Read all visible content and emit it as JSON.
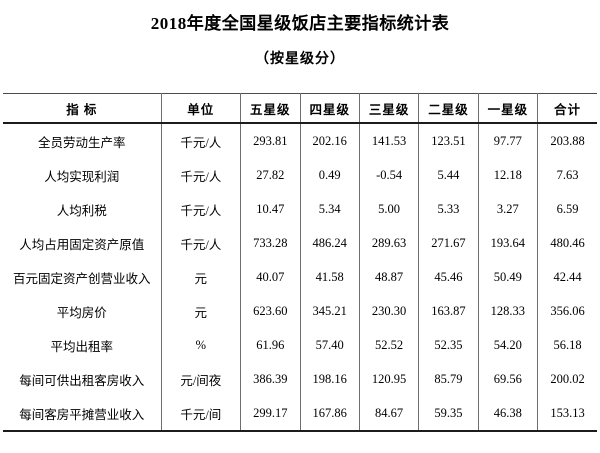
{
  "title": "2018年度全国星级饭店主要指标统计表",
  "subtitle": "（按星级分）",
  "table": {
    "headers": [
      "指 标",
      "单位",
      "五星级",
      "四星级",
      "三星级",
      "二星级",
      "一星级",
      "合计"
    ],
    "rows": [
      {
        "indicator": "全员劳动生产率",
        "unit": "千元/人",
        "values": [
          "293.81",
          "202.16",
          "141.53",
          "123.51",
          "97.77",
          "203.88"
        ]
      },
      {
        "indicator": "人均实现利润",
        "unit": "千元/人",
        "values": [
          "27.82",
          "0.49",
          "-0.54",
          "5.44",
          "12.18",
          "7.63"
        ]
      },
      {
        "indicator": "人均利税",
        "unit": "千元/人",
        "values": [
          "10.47",
          "5.34",
          "5.00",
          "5.33",
          "3.27",
          "6.59"
        ]
      },
      {
        "indicator": "人均占用固定资产原值",
        "unit": "千元/人",
        "values": [
          "733.28",
          "486.24",
          "289.63",
          "271.67",
          "193.64",
          "480.46"
        ]
      },
      {
        "indicator": "百元固定资产创营业收入",
        "unit": "元",
        "values": [
          "40.07",
          "41.58",
          "48.87",
          "45.46",
          "50.49",
          "42.44"
        ]
      },
      {
        "indicator": "平均房价",
        "unit": "元",
        "values": [
          "623.60",
          "345.21",
          "230.30",
          "163.87",
          "128.33",
          "356.06"
        ]
      },
      {
        "indicator": "平均出租率",
        "unit": "%",
        "values": [
          "61.96",
          "57.40",
          "52.52",
          "52.35",
          "54.20",
          "56.18"
        ]
      },
      {
        "indicator": "每间可供出租客房收入",
        "unit": "元/间夜",
        "values": [
          "386.39",
          "198.16",
          "120.95",
          "85.79",
          "69.56",
          "200.02"
        ]
      },
      {
        "indicator": "每间客房平摊营业收入",
        "unit": "千元/间",
        "values": [
          "299.17",
          "167.86",
          "84.67",
          "59.35",
          "46.38",
          "153.13"
        ]
      }
    ],
    "column_widths": [
      "26.6%",
      "13.4%",
      "10%",
      "10%",
      "10%",
      "10%",
      "10%",
      "10%"
    ]
  },
  "chart_data": {
    "type": "table",
    "title": "2018年度全国星级饭店主要指标统计表（按星级分）",
    "columns": [
      "指标",
      "单位",
      "五星级",
      "四星级",
      "三星级",
      "二星级",
      "一星级",
      "合计"
    ],
    "rows": [
      [
        "全员劳动生产率",
        "千元/人",
        293.81,
        202.16,
        141.53,
        123.51,
        97.77,
        203.88
      ],
      [
        "人均实现利润",
        "千元/人",
        27.82,
        0.49,
        -0.54,
        5.44,
        12.18,
        7.63
      ],
      [
        "人均利税",
        "千元/人",
        10.47,
        5.34,
        5.0,
        5.33,
        3.27,
        6.59
      ],
      [
        "人均占用固定资产原值",
        "千元/人",
        733.28,
        486.24,
        289.63,
        271.67,
        193.64,
        480.46
      ],
      [
        "百元固定资产创营业收入",
        "元",
        40.07,
        41.58,
        48.87,
        45.46,
        50.49,
        42.44
      ],
      [
        "平均房价",
        "元",
        623.6,
        345.21,
        230.3,
        163.87,
        128.33,
        356.06
      ],
      [
        "平均出租率",
        "%",
        61.96,
        57.4,
        52.52,
        52.35,
        54.2,
        56.18
      ],
      [
        "每间可供出租客房收入",
        "元/间夜",
        386.39,
        198.16,
        120.95,
        85.79,
        69.56,
        200.02
      ],
      [
        "每间客房平摊营业收入",
        "千元/间",
        299.17,
        167.86,
        84.67,
        59.35,
        46.38,
        153.13
      ]
    ]
  },
  "colors": {
    "background": "#ffffff",
    "text": "#000000",
    "border_dark": "#1c1c1c",
    "border_light": "#6e6e6e"
  }
}
